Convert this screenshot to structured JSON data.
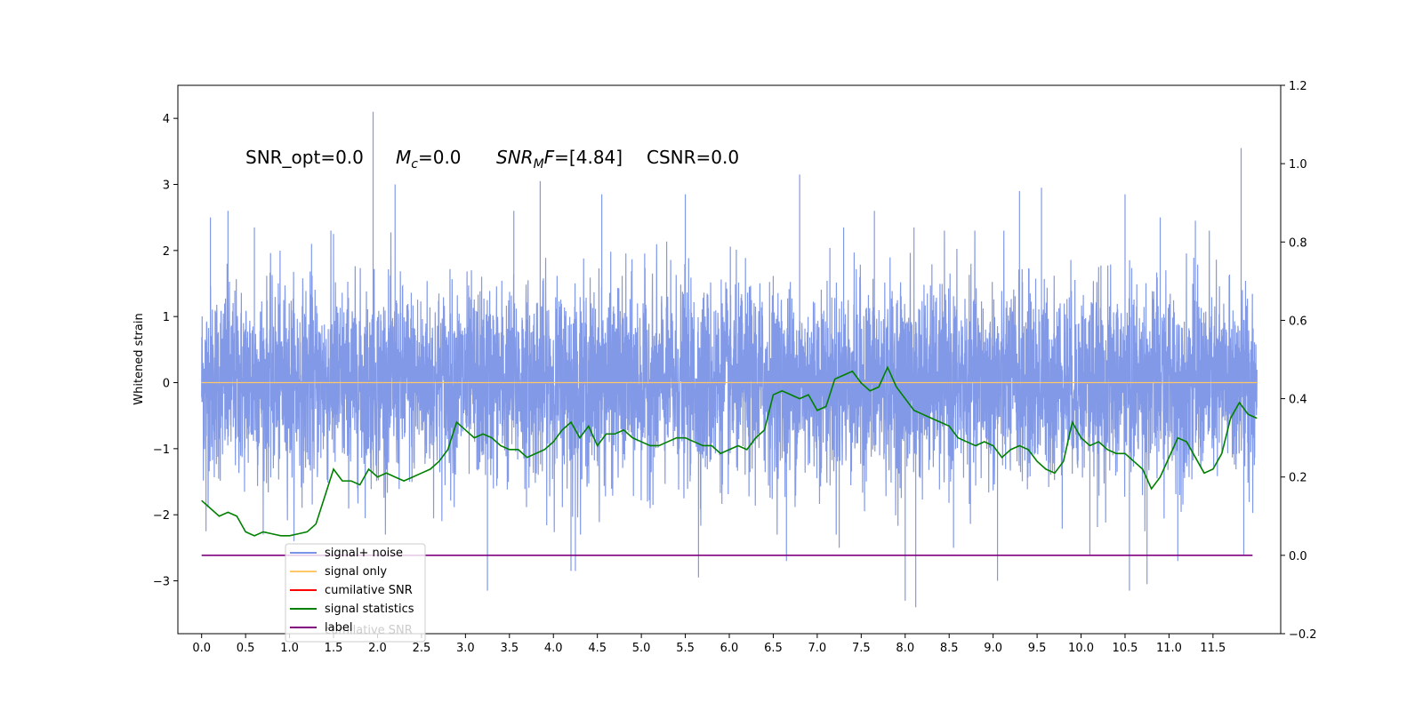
{
  "chart_data": {
    "type": "line",
    "annotations": {
      "snr_opt": "SNR_opt=0.0",
      "mc_symbol": "M",
      "mc_sub": "c",
      "mc_value": "=0.0",
      "snrmf_symbol": "SNR",
      "snrmf_sub": "M",
      "snrmf_sym2": "F",
      "snrmf_value": "=[4.84]",
      "csnr": "CSNR=0.0"
    },
    "ylabel": "Whitened strain",
    "y2label": "",
    "xlim": [
      -0.27,
      12.27
    ],
    "ylim": [
      -3.8,
      4.5
    ],
    "y2lim": [
      -0.2,
      1.2
    ],
    "x_ticks": [
      "0.0",
      "0.5",
      "1.0",
      "1.5",
      "2.0",
      "2.5",
      "3.0",
      "3.5",
      "4.0",
      "4.5",
      "5.0",
      "5.5",
      "6.0",
      "6.5",
      "7.0",
      "7.5",
      "8.0",
      "8.5",
      "9.0",
      "9.5",
      "10.0",
      "10.5",
      "11.0",
      "11.5"
    ],
    "y_ticks": [
      "−3",
      "−2",
      "−1",
      "0",
      "1",
      "2",
      "3",
      "4"
    ],
    "y2_ticks": [
      "−0.2",
      "0.0",
      "0.2",
      "0.4",
      "0.6",
      "0.8",
      "1.0",
      "1.2"
    ],
    "grid": false,
    "legend_position": "lower-left",
    "legend": [
      {
        "label": "signal+ noise",
        "color": "#7b93e6"
      },
      {
        "label": "signal only",
        "color": "#ffc766"
      },
      {
        "label": "cumilative SNR",
        "color": "#ff0000"
      },
      {
        "label": "signal statistics",
        "color": "#008000"
      },
      {
        "label": "label",
        "color": "#800080"
      }
    ],
    "legend_overlap_text": "cumilative SNR",
    "series": [
      {
        "name": "signal+ noise",
        "axis": "left",
        "color": "#7b93e6",
        "style": "dense-noise",
        "x_range": [
          0.0,
          12.0
        ],
        "band_low": -1.5,
        "band_high": 1.5,
        "spikes": [
          {
            "x": 0.1,
            "y": 2.5
          },
          {
            "x": 0.3,
            "y": 2.6
          },
          {
            "x": 0.6,
            "y": 2.35
          },
          {
            "x": 1.25,
            "y": 2.1
          },
          {
            "x": 1.5,
            "y": 2.25
          },
          {
            "x": 1.95,
            "y": 4.1
          },
          {
            "x": 2.2,
            "y": 3.0
          },
          {
            "x": 3.55,
            "y": 2.6
          },
          {
            "x": 3.85,
            "y": 3.05
          },
          {
            "x": 4.55,
            "y": 2.85
          },
          {
            "x": 5.5,
            "y": 2.85
          },
          {
            "x": 6.8,
            "y": 3.15
          },
          {
            "x": 7.3,
            "y": 2.35
          },
          {
            "x": 7.65,
            "y": 2.6
          },
          {
            "x": 8.1,
            "y": 2.35
          },
          {
            "x": 9.3,
            "y": 2.9
          },
          {
            "x": 9.55,
            "y": 2.95
          },
          {
            "x": 10.5,
            "y": 2.85
          },
          {
            "x": 10.9,
            "y": 2.5
          },
          {
            "x": 11.3,
            "y": 2.45
          },
          {
            "x": 11.82,
            "y": 3.55
          },
          {
            "x": 0.05,
            "y": -2.25
          },
          {
            "x": 1.05,
            "y": -2.4
          },
          {
            "x": 3.25,
            "y": -3.15
          },
          {
            "x": 4.2,
            "y": -2.85
          },
          {
            "x": 4.25,
            "y": -2.85
          },
          {
            "x": 5.65,
            "y": -2.95
          },
          {
            "x": 6.65,
            "y": -2.7
          },
          {
            "x": 7.25,
            "y": -2.5
          },
          {
            "x": 8.0,
            "y": -3.3
          },
          {
            "x": 8.12,
            "y": -3.4
          },
          {
            "x": 8.55,
            "y": -2.5
          },
          {
            "x": 9.05,
            "y": -3.0
          },
          {
            "x": 10.1,
            "y": -2.6
          },
          {
            "x": 10.55,
            "y": -3.15
          },
          {
            "x": 10.75,
            "y": -3.05
          },
          {
            "x": 11.1,
            "y": -2.7
          },
          {
            "x": 11.85,
            "y": -2.6
          }
        ]
      },
      {
        "name": "signal only",
        "axis": "left",
        "color": "#ffc766",
        "x": [
          0.0,
          12.0
        ],
        "y": [
          0.0,
          0.0
        ]
      },
      {
        "name": "signal statistics",
        "axis": "right",
        "color": "#008000",
        "x": [
          0.0,
          0.1,
          0.2,
          0.3,
          0.4,
          0.5,
          0.6,
          0.7,
          0.8,
          0.9,
          1.0,
          1.1,
          1.2,
          1.3,
          1.4,
          1.5,
          1.6,
          1.7,
          1.8,
          1.9,
          2.0,
          2.1,
          2.2,
          2.3,
          2.4,
          2.5,
          2.6,
          2.7,
          2.8,
          2.9,
          3.0,
          3.1,
          3.2,
          3.3,
          3.4,
          3.5,
          3.6,
          3.7,
          3.8,
          3.9,
          4.0,
          4.1,
          4.2,
          4.3,
          4.4,
          4.5,
          4.6,
          4.7,
          4.8,
          4.9,
          5.0,
          5.1,
          5.2,
          5.3,
          5.4,
          5.5,
          5.6,
          5.7,
          5.8,
          5.9,
          6.0,
          6.1,
          6.2,
          6.3,
          6.4,
          6.5,
          6.6,
          6.7,
          6.8,
          6.9,
          7.0,
          7.1,
          7.2,
          7.3,
          7.4,
          7.5,
          7.6,
          7.7,
          7.8,
          7.9,
          8.0,
          8.1,
          8.2,
          8.3,
          8.4,
          8.5,
          8.6,
          8.7,
          8.8,
          8.9,
          9.0,
          9.1,
          9.2,
          9.3,
          9.4,
          9.5,
          9.6,
          9.7,
          9.8,
          9.9,
          10.0,
          10.1,
          10.2,
          10.3,
          10.4,
          10.5,
          10.6,
          10.7,
          10.8,
          10.9,
          11.0,
          11.1,
          11.2,
          11.3,
          11.4,
          11.5,
          11.6,
          11.7,
          11.8,
          11.9,
          12.0
        ],
        "y": [
          0.14,
          0.12,
          0.1,
          0.11,
          0.1,
          0.06,
          0.05,
          0.06,
          0.055,
          0.05,
          0.05,
          0.055,
          0.06,
          0.08,
          0.15,
          0.22,
          0.19,
          0.19,
          0.18,
          0.22,
          0.2,
          0.21,
          0.2,
          0.19,
          0.2,
          0.21,
          0.22,
          0.24,
          0.27,
          0.34,
          0.32,
          0.3,
          0.31,
          0.3,
          0.28,
          0.27,
          0.27,
          0.25,
          0.26,
          0.27,
          0.29,
          0.32,
          0.34,
          0.3,
          0.33,
          0.28,
          0.31,
          0.31,
          0.32,
          0.3,
          0.29,
          0.28,
          0.28,
          0.29,
          0.3,
          0.3,
          0.29,
          0.28,
          0.28,
          0.26,
          0.27,
          0.28,
          0.27,
          0.3,
          0.32,
          0.41,
          0.42,
          0.41,
          0.4,
          0.41,
          0.37,
          0.38,
          0.45,
          0.46,
          0.47,
          0.44,
          0.42,
          0.43,
          0.48,
          0.43,
          0.4,
          0.37,
          0.36,
          0.35,
          0.34,
          0.33,
          0.3,
          0.29,
          0.28,
          0.29,
          0.28,
          0.25,
          0.27,
          0.28,
          0.27,
          0.24,
          0.22,
          0.21,
          0.24,
          0.34,
          0.3,
          0.28,
          0.29,
          0.27,
          0.26,
          0.26,
          0.24,
          0.22,
          0.17,
          0.2,
          0.25,
          0.3,
          0.29,
          0.25,
          0.21,
          0.22,
          0.26,
          0.35,
          0.39,
          0.36,
          0.35
        ]
      },
      {
        "name": "label",
        "axis": "right",
        "color": "#800080",
        "x": [
          0.0,
          11.95
        ],
        "y": [
          0.0,
          0.0
        ]
      }
    ]
  }
}
